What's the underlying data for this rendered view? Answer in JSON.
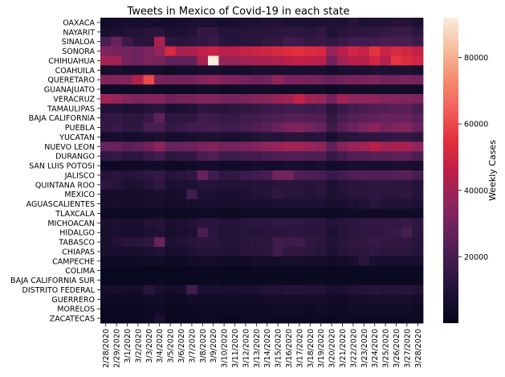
{
  "chart_data": {
    "type": "heatmap",
    "title": "Tweets in Mexico of Covid-19 in each state",
    "colorbar_label": "Weekly Cases",
    "colorbar_ticks": [
      20000,
      40000,
      60000,
      80000
    ],
    "colorbar_tick_labels": [
      "20000",
      "40000",
      "60000",
      "80000"
    ],
    "value_range": [
      0,
      92000
    ],
    "colormap": "rocket",
    "dates": [
      "2/28/2020",
      "2/29/2020",
      "3/1/2020",
      "3/2/2020",
      "3/3/2020",
      "3/4/2020",
      "3/5/2020",
      "3/6/2020",
      "3/7/2020",
      "3/8/2020",
      "3/9/2020",
      "3/10/2020",
      "3/11/2020",
      "3/12/2020",
      "3/13/2020",
      "3/14/2020",
      "3/15/2020",
      "3/16/2020",
      "3/17/2020",
      "3/18/2020",
      "3/19/2020",
      "3/20/2020",
      "3/21/2020",
      "3/22/2020",
      "3/23/2020",
      "3/24/2020",
      "3/25/2020",
      "3/26/2020",
      "3/27/2020",
      "3/28/2020"
    ],
    "x_tick_labels": [
      "2/28/2020",
      "2/29/2020",
      "3/1/2020",
      "3/2/2020",
      "3/3/2020",
      "3/4/2020",
      "3/5/2020",
      "3/6/2020",
      "3/7/2020",
      "3/8/2020",
      "3/9/2020",
      "3/10/2020",
      "3/11/2020",
      "3/12/2020",
      "3/13/2020",
      "3/14/2020",
      "3/15/2020",
      "3/16/2020",
      "3/17/2020",
      "3/18/2020",
      "3/19/2020",
      "3/20/2020",
      "3/21/2020",
      "3/22/2020",
      "3/23/2020",
      "3/24/2020",
      "3/25/2020",
      "3/26/2020",
      "3/27/2020",
      "3/28/2020"
    ],
    "states": [
      "OAXACA",
      "NAYARIT",
      "SINALOA",
      "SONORA",
      "CHIHUAHUA",
      "COAHUILA",
      "QUERETARO",
      "GUANAJUATO",
      "VERACRUZ",
      "TAMAULIPAS",
      "BAJA CALIFORNIA",
      "PUEBLA",
      "YUCATAN",
      "NUEVO LEON",
      "DURANGO",
      "SAN LUIS POTOSI",
      "JALISCO",
      "QUINTANA ROO",
      "MEXICO",
      "AGUASCALIENTES",
      "TLAXCALA",
      "MICHOACAN",
      "HIDALGO",
      "TABASCO",
      "CHIAPAS",
      "CAMPECHE",
      "COLIMA",
      "BAJA CALIFORNIA SUR",
      "DISTRITO FEDERAL",
      "GUERRERO",
      "MORELOS",
      "ZACATECAS"
    ],
    "values": [
      [
        5000,
        6000,
        7000,
        6000,
        7000,
        6000,
        6000,
        7000,
        8000,
        9000,
        8000,
        7000,
        8000,
        9000,
        9000,
        10000,
        10000,
        9000,
        9000,
        8000,
        9000,
        10000,
        9000,
        12000,
        9000,
        10000,
        10000,
        11000,
        11000,
        9000
      ],
      [
        7000,
        9000,
        10000,
        10000,
        11000,
        12000,
        9000,
        9000,
        10000,
        15000,
        14000,
        11000,
        11000,
        11000,
        12000,
        12000,
        13000,
        13000,
        13000,
        12000,
        14000,
        10000,
        12000,
        13000,
        13000,
        14000,
        15000,
        16000,
        16000,
        13000
      ],
      [
        20000,
        28000,
        17000,
        12000,
        12000,
        42000,
        13000,
        12000,
        13000,
        14000,
        16000,
        12000,
        11000,
        12000,
        12000,
        14000,
        15000,
        18000,
        17000,
        15000,
        16000,
        14000,
        16000,
        18000,
        18000,
        19000,
        20000,
        20000,
        20000,
        17000
      ],
      [
        33000,
        31000,
        30000,
        29000,
        32000,
        37000,
        52000,
        41000,
        43000,
        47000,
        48000,
        45000,
        46000,
        48000,
        49000,
        50000,
        52000,
        54000,
        55000,
        53000,
        52000,
        38000,
        45000,
        50000,
        48000,
        56000,
        49000,
        52000,
        50000,
        47000
      ],
      [
        40000,
        40000,
        30000,
        29000,
        32000,
        31000,
        26000,
        26000,
        26000,
        42000,
        92000,
        38000,
        38000,
        40000,
        41000,
        42000,
        43000,
        45000,
        47000,
        46000,
        45000,
        30000,
        40000,
        45000,
        44000,
        50000,
        44000,
        56000,
        53000,
        50000
      ],
      [
        6000,
        7000,
        6000,
        6000,
        7000,
        6000,
        5000,
        6000,
        6000,
        7000,
        7000,
        6000,
        6000,
        6000,
        7000,
        7000,
        8000,
        8000,
        8000,
        7000,
        8000,
        6000,
        7000,
        8000,
        8000,
        9000,
        9000,
        9000,
        9000,
        8000
      ],
      [
        33000,
        33000,
        34000,
        44000,
        60000,
        31000,
        30000,
        30000,
        31000,
        34000,
        36000,
        33000,
        32000,
        31000,
        29000,
        30000,
        38000,
        32000,
        32000,
        31000,
        30000,
        28000,
        30000,
        31000,
        32000,
        33000,
        30000,
        31000,
        32000,
        30000
      ],
      [
        4000,
        4000,
        4000,
        4000,
        5000,
        4000,
        4000,
        4000,
        4000,
        5000,
        5000,
        4000,
        4000,
        5000,
        5000,
        5000,
        5000,
        5000,
        5000,
        5000,
        5000,
        4000,
        5000,
        5000,
        5000,
        5000,
        5000,
        5000,
        5000,
        5000
      ],
      [
        40000,
        38000,
        34000,
        32000,
        33000,
        35000,
        30000,
        31000,
        31000,
        33000,
        33000,
        31000,
        31000,
        32000,
        34000,
        35000,
        38000,
        40000,
        48000,
        40000,
        38000,
        30000,
        40000,
        36000,
        36000,
        36000,
        34000,
        34000,
        33000,
        32000
      ],
      [
        10000,
        10000,
        9000,
        9000,
        11000,
        12000,
        8000,
        9000,
        10000,
        13000,
        12000,
        12000,
        13000,
        14000,
        15000,
        16000,
        17000,
        18000,
        18000,
        17000,
        18000,
        12000,
        16000,
        19000,
        20000,
        22000,
        22000,
        24000,
        24000,
        20000
      ],
      [
        14000,
        15000,
        13000,
        13000,
        16000,
        26000,
        13000,
        14000,
        14000,
        18000,
        17000,
        16000,
        16000,
        18000,
        19000,
        20000,
        21000,
        23000,
        24000,
        22000,
        22000,
        15000,
        20000,
        23000,
        24000,
        26000,
        27000,
        28000,
        28000,
        24000
      ],
      [
        15000,
        16000,
        14000,
        14000,
        20000,
        20000,
        15000,
        16000,
        19000,
        19000,
        20000,
        18000,
        18000,
        20000,
        22000,
        24000,
        28000,
        32000,
        33000,
        30000,
        27000,
        17000,
        24000,
        28000,
        32000,
        35000,
        31000,
        33000,
        34000,
        28000
      ],
      [
        6000,
        7000,
        6000,
        6000,
        8000,
        9000,
        6000,
        6000,
        7000,
        9000,
        9000,
        8000,
        8000,
        9000,
        10000,
        11000,
        11000,
        12000,
        12000,
        11000,
        12000,
        8000,
        11000,
        12000,
        13000,
        14000,
        14000,
        15000,
        15000,
        13000
      ],
      [
        27000,
        28000,
        25000,
        26000,
        30000,
        36000,
        27000,
        28000,
        29000,
        32000,
        33000,
        30000,
        31000,
        32000,
        34000,
        36000,
        38000,
        40000,
        40000,
        38000,
        36000,
        26000,
        34000,
        38000,
        40000,
        45000,
        40000,
        42000,
        41000,
        36000
      ],
      [
        14000,
        15000,
        13000,
        13000,
        16000,
        18000,
        13000,
        14000,
        15000,
        20000,
        22000,
        17000,
        17000,
        18000,
        19000,
        20000,
        21000,
        22000,
        22000,
        21000,
        21000,
        15000,
        19000,
        22000,
        22000,
        24000,
        24000,
        25000,
        25000,
        21000
      ],
      [
        4000,
        4000,
        4000,
        4000,
        5000,
        5000,
        4000,
        4000,
        5000,
        6000,
        6000,
        5000,
        5000,
        5000,
        6000,
        6000,
        6000,
        7000,
        7000,
        6000,
        7000,
        5000,
        6000,
        7000,
        7000,
        7000,
        7000,
        8000,
        8000,
        7000
      ],
      [
        11000,
        12000,
        11000,
        12000,
        14000,
        15000,
        11000,
        12000,
        14000,
        28000,
        18000,
        14000,
        15000,
        17000,
        18000,
        20000,
        30000,
        30000,
        22000,
        21000,
        20000,
        16000,
        19000,
        22000,
        23000,
        22000,
        22000,
        23000,
        24000,
        20000
      ],
      [
        14000,
        11000,
        9000,
        9000,
        11000,
        14000,
        8000,
        9000,
        9000,
        11000,
        11000,
        10000,
        10000,
        10000,
        11000,
        11000,
        12000,
        12000,
        12000,
        11000,
        12000,
        9000,
        11000,
        12000,
        12000,
        13000,
        13000,
        13000,
        13000,
        11000
      ],
      [
        6000,
        6000,
        6000,
        6000,
        7000,
        8000,
        6000,
        7000,
        18000,
        9000,
        9000,
        8000,
        8000,
        9000,
        10000,
        11000,
        14000,
        12000,
        12000,
        11000,
        12000,
        9000,
        10000,
        12000,
        13000,
        14000,
        13000,
        13000,
        14000,
        11000
      ],
      [
        6000,
        7000,
        6000,
        6000,
        7000,
        7000,
        6000,
        6000,
        7000,
        8000,
        8000,
        7000,
        7000,
        8000,
        8000,
        8000,
        9000,
        9000,
        9000,
        9000,
        9000,
        7000,
        8000,
        9000,
        10000,
        12000,
        10000,
        10000,
        10000,
        9000
      ],
      [
        3000,
        3000,
        3000,
        3000,
        3000,
        4000,
        3000,
        3000,
        3000,
        4000,
        4000,
        3000,
        3000,
        4000,
        4000,
        4000,
        4000,
        4000,
        4000,
        4000,
        4000,
        3000,
        4000,
        4000,
        4000,
        4000,
        4000,
        4000,
        4000,
        4000
      ],
      [
        8000,
        9000,
        8000,
        8000,
        10000,
        11000,
        8000,
        9000,
        10000,
        12000,
        12000,
        11000,
        11000,
        12000,
        13000,
        13000,
        14000,
        14000,
        14000,
        13000,
        13000,
        10000,
        12000,
        13000,
        14000,
        15000,
        15000,
        15000,
        16000,
        14000
      ],
      [
        7000,
        8000,
        7000,
        7000,
        9000,
        10000,
        7000,
        8000,
        9000,
        20000,
        13000,
        10000,
        10000,
        11000,
        11000,
        12000,
        12000,
        13000,
        13000,
        12000,
        12000,
        9000,
        11000,
        13000,
        14000,
        14000,
        15000,
        16000,
        20000,
        13000
      ],
      [
        8000,
        10000,
        12000,
        12000,
        14000,
        28000,
        9000,
        10000,
        11000,
        13000,
        13000,
        11000,
        11000,
        12000,
        13000,
        13000,
        18000,
        17000,
        18000,
        14000,
        13000,
        10000,
        12000,
        14000,
        15000,
        16000,
        15000,
        14000,
        14000,
        12000
      ],
      [
        7000,
        8000,
        7000,
        7000,
        9000,
        10000,
        7000,
        8000,
        9000,
        11000,
        11000,
        10000,
        10000,
        12000,
        12000,
        13000,
        18000,
        14000,
        14000,
        13000,
        12000,
        9000,
        11000,
        12000,
        13000,
        14000,
        13000,
        13000,
        13000,
        11000
      ],
      [
        4000,
        4000,
        4000,
        4000,
        5000,
        5000,
        4000,
        4000,
        5000,
        6000,
        6000,
        5000,
        5000,
        5000,
        6000,
        6000,
        6000,
        7000,
        7000,
        6000,
        6000,
        5000,
        6000,
        7000,
        12000,
        8000,
        8000,
        8000,
        8000,
        7000
      ],
      [
        2000,
        2000,
        2000,
        2000,
        2000,
        2000,
        2000,
        2000,
        2000,
        3000,
        3000,
        2000,
        2000,
        2000,
        3000,
        3000,
        3000,
        3000,
        3000,
        3000,
        3000,
        2000,
        3000,
        3000,
        3000,
        3000,
        3000,
        3000,
        3000,
        3000
      ],
      [
        2000,
        2000,
        2000,
        2000,
        2000,
        3000,
        2000,
        2000,
        2000,
        3000,
        3000,
        2000,
        2000,
        3000,
        3000,
        3000,
        3000,
        3000,
        3000,
        3000,
        3000,
        2000,
        3000,
        3000,
        3000,
        3000,
        3000,
        3000,
        3000,
        3000
      ],
      [
        6000,
        7000,
        6000,
        6000,
        12000,
        8000,
        6000,
        7000,
        18000,
        9000,
        9000,
        8000,
        8000,
        9000,
        9000,
        10000,
        10000,
        11000,
        11000,
        10000,
        10000,
        8000,
        9000,
        10000,
        11000,
        12000,
        11000,
        11000,
        12000,
        10000
      ],
      [
        4000,
        4000,
        4000,
        4000,
        5000,
        5000,
        4000,
        4000,
        5000,
        5000,
        5000,
        5000,
        5000,
        5000,
        5000,
        6000,
        6000,
        6000,
        6000,
        6000,
        6000,
        5000,
        5000,
        6000,
        6000,
        7000,
        7000,
        7000,
        7000,
        6000
      ],
      [
        3000,
        3000,
        3000,
        3000,
        4000,
        4000,
        3000,
        3000,
        3000,
        4000,
        4000,
        4000,
        4000,
        4000,
        4000,
        4000,
        5000,
        5000,
        5000,
        4000,
        5000,
        4000,
        4000,
        5000,
        5000,
        5000,
        5000,
        5000,
        5000,
        4000
      ],
      [
        2000,
        2000,
        2000,
        2000,
        3000,
        8000,
        2000,
        2000,
        2000,
        3000,
        3000,
        2000,
        2000,
        3000,
        3000,
        3000,
        3000,
        3000,
        3000,
        3000,
        3000,
        2000,
        3000,
        3000,
        3000,
        3000,
        3000,
        3000,
        3000,
        3000
      ]
    ]
  }
}
